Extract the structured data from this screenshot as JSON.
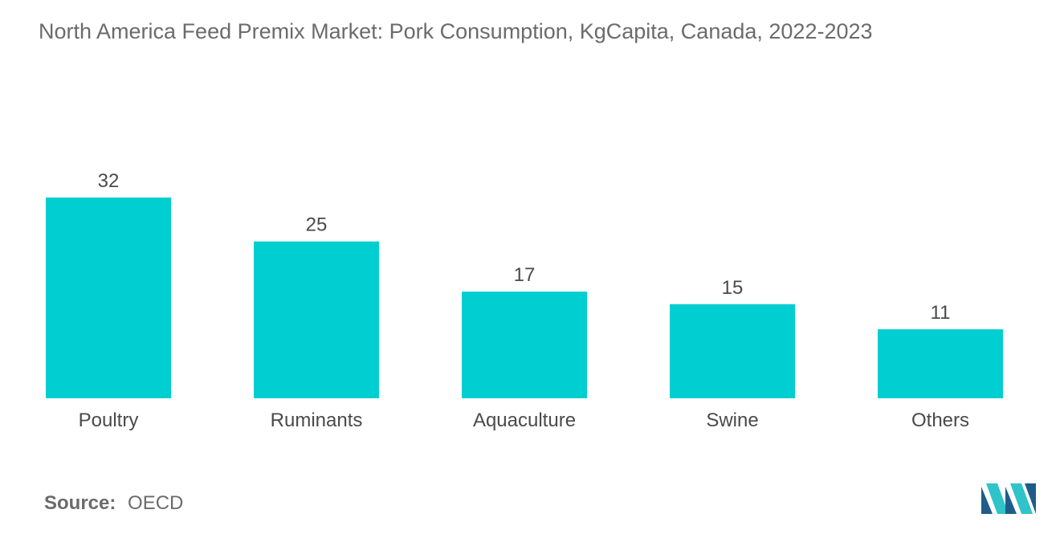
{
  "header": {
    "title": "North America Feed Premix Market: Pork Consumption, KgCapita, Canada, 2022-2023"
  },
  "footer": {
    "source_label": "Source:",
    "source_value": "OECD",
    "logo_icon": "mordor-intelligence-logo-icon"
  },
  "colors": {
    "bar": "#00CED1",
    "text": "#555555",
    "logo_dark": "#1f5c8b",
    "logo_light": "#2ec4c9"
  },
  "chart_data": {
    "type": "bar",
    "title": "North America Feed Premix Market: Pork Consumption, KgCapita, Canada, 2022-2023",
    "xlabel": "",
    "ylabel": "",
    "categories": [
      "Poultry",
      "Ruminants",
      "Aquaculture",
      "Swine",
      "Others"
    ],
    "values": [
      32,
      25,
      17,
      15,
      11
    ],
    "data_labels": [
      "32",
      "25",
      "17",
      "15",
      "11"
    ],
    "ylim": [
      0,
      32
    ],
    "grid": false,
    "legend": "none"
  }
}
